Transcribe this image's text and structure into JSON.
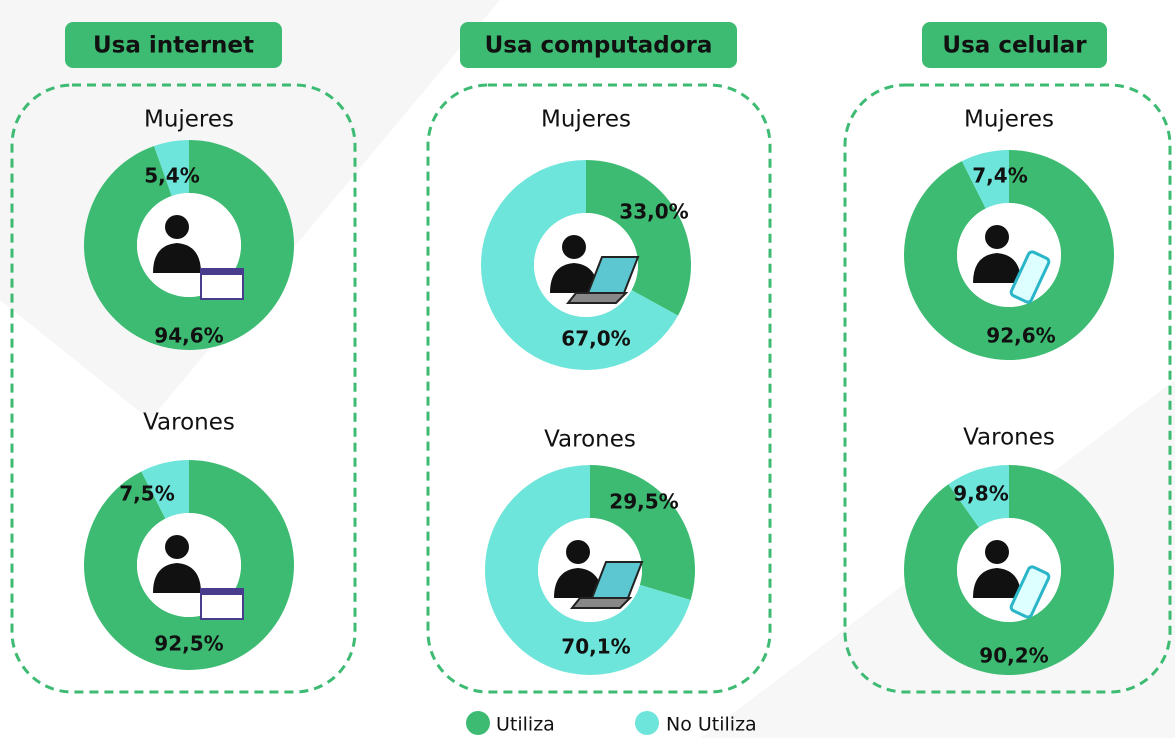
{
  "panels": [
    "Usa internet",
    "Usa computadora",
    "Usa celular"
  ],
  "legend": {
    "categories": [
      "Utiliza",
      "No Utiliza"
    ],
    "colors": [
      "#3dbb72",
      "#6ee5da"
    ]
  },
  "chart_data": [
    {
      "type": "pie",
      "subtitle": "Mujeres",
      "values": [
        94.6,
        5.4
      ],
      "value_labels": [
        "94,6%",
        "5,4%"
      ]
    },
    {
      "type": "pie",
      "subtitle": "Varones",
      "values": [
        92.5,
        7.5
      ],
      "value_labels": [
        "92,5%",
        "7,5%"
      ]
    },
    {
      "type": "pie",
      "subtitle": "Mujeres",
      "values": [
        33.0,
        67.0
      ],
      "value_labels": [
        "33,0%",
        "67,0%"
      ]
    },
    {
      "type": "pie",
      "subtitle": "Varones",
      "values": [
        29.5,
        70.1
      ],
      "value_labels": [
        "29,5%",
        "70,1%"
      ]
    },
    {
      "type": "pie",
      "subtitle": "Mujeres",
      "values": [
        92.6,
        7.4
      ],
      "value_labels": [
        "92,6%",
        "7,4%"
      ]
    },
    {
      "type": "pie",
      "subtitle": "Varones",
      "values": [
        90.2,
        9.8
      ],
      "value_labels": [
        "90,2%",
        "9,8%"
      ]
    }
  ]
}
